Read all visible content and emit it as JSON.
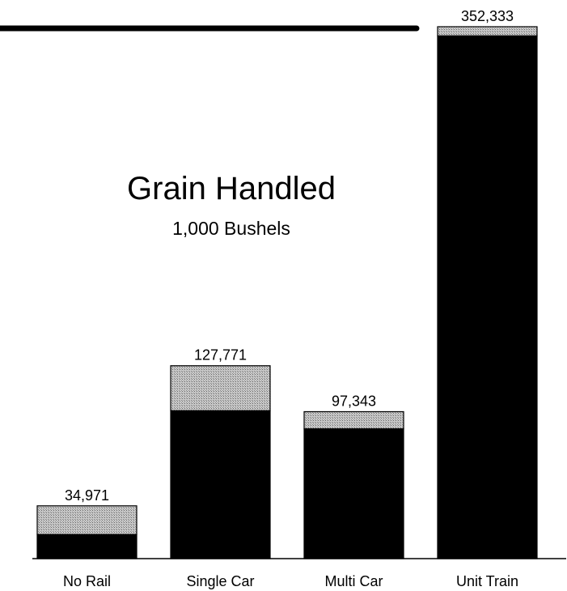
{
  "chart_data": {
    "type": "stacked-bar",
    "title": "Grain Handled",
    "subtitle": "1,000 Bushels",
    "categories": [
      "No Rail",
      "Single Car",
      "Multi Car",
      "Unit Train"
    ],
    "series": [
      {
        "color": "#000000",
        "values": [
          16000,
          98000,
          86000,
          346300
        ]
      },
      {
        "color": "#b4b4b4",
        "values": [
          18971,
          29771,
          11343,
          6033
        ]
      }
    ],
    "totals": [
      34971,
      127771,
      97343,
      352333
    ],
    "total_labels": [
      "34,971",
      "127,771",
      "97,343",
      "352,333"
    ]
  }
}
